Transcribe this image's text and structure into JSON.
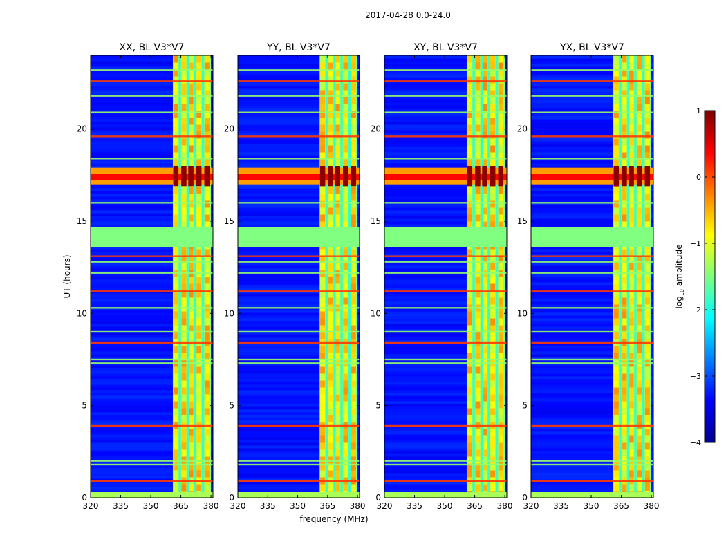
{
  "figure": {
    "suptitle": "2017-04-28 0.0-24.0"
  },
  "chart_data": {
    "type": "heatmap",
    "title": "2017-04-28 0.0-24.0",
    "xlabel": "frequency (MHz)",
    "ylabel": "UT (hours)",
    "xlim": [
      320,
      381
    ],
    "ylim": [
      0,
      24
    ],
    "x_ticks": [
      320,
      335,
      350,
      365,
      380
    ],
    "y_ticks": [
      0,
      5,
      10,
      15,
      20
    ],
    "panels": [
      {
        "title": "XX, BL V3*V7",
        "polarization": "XX"
      },
      {
        "title": "YY, BL V3*V7",
        "polarization": "YY"
      },
      {
        "title": "XY, BL V3*V7",
        "polarization": "XY"
      },
      {
        "title": "YX, BL V3*V7",
        "polarization": "YX"
      }
    ],
    "colorbar": {
      "label_prefix": "log",
      "label_sub": "10",
      "label_suffix": " amplitude",
      "range": [
        -4,
        1
      ],
      "ticks": [
        "1",
        "0",
        "−1",
        "−2",
        "−3",
        "−4"
      ],
      "tick_values": [
        1,
        0,
        -1,
        -2,
        -3,
        -4
      ],
      "colormap": "jet"
    },
    "features": {
      "rfi_band_mhz": [
        361,
        380
      ],
      "strong_rfi_ut": [
        17.0,
        17.9
      ],
      "flagged_block_ut": [
        13.6,
        14.7
      ],
      "horizontal_rfi_lines_ut": [
        0.9,
        1.8,
        2.0,
        3.9,
        7.3,
        7.5,
        8.4,
        9.0,
        10.3,
        11.2,
        12.2,
        12.8,
        13.1,
        16.0,
        18.4,
        19.6,
        20.9,
        21.8,
        22.6,
        23.2
      ]
    }
  }
}
